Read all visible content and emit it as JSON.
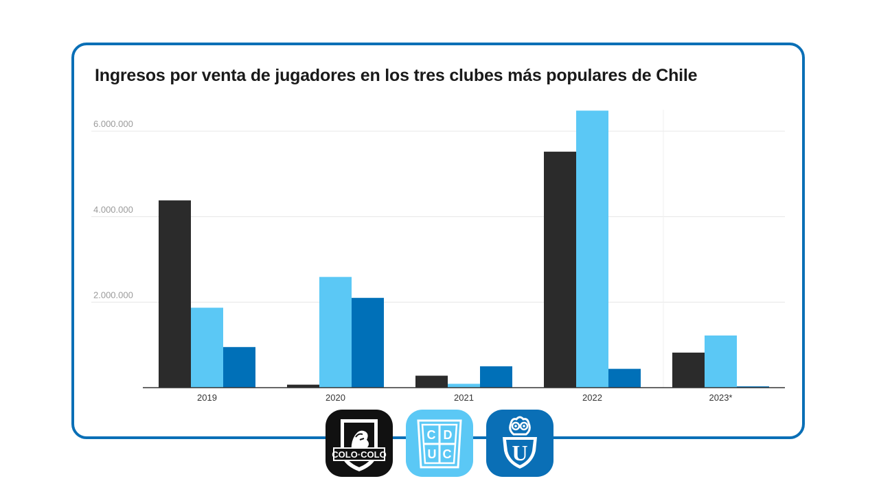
{
  "title": "Ingresos por venta de jugadores en los tres clubes más populares de Chile",
  "colors": {
    "border": "#0a6fb6",
    "colo_colo": "#2b2b2b",
    "universidad_catolica": "#5bc8f5",
    "universidad_de_chile": "#0070b8",
    "grid": "#e6e6e6",
    "tick_text": "#9a9a9a",
    "axis_text": "#333333"
  },
  "chart_data": {
    "type": "bar",
    "title": "Ingresos por venta de jugadores en los tres clubes más populares de Chile",
    "xlabel": "",
    "ylabel": "",
    "categories": [
      "2019",
      "2020",
      "2021",
      "2022",
      "2023*"
    ],
    "y_ticks": [
      "2.000.000",
      "4.000.000",
      "6.000.000"
    ],
    "y_tick_values": [
      2000000,
      4000000,
      6000000
    ],
    "ylim": [
      0,
      6500000
    ],
    "grid": true,
    "legend": "logos-below",
    "series": [
      {
        "values": [
          4380000,
          70000,
          280000,
          5520000,
          820000
        ],
        "color": "#2b2b2b"
      },
      {
        "values": [
          1870000,
          2590000,
          90000,
          6480000,
          1220000
        ],
        "color": "#5bc8f5"
      },
      {
        "values": [
          950000,
          2100000,
          500000,
          440000,
          30000
        ],
        "color": "#0070b8"
      }
    ]
  },
  "logos": {
    "colo_colo": {
      "icon": "colo-colo-crest-icon",
      "text": "COLO·COLO"
    },
    "universidad_catolica": {
      "icon": "cduc-crest-icon",
      "letters": [
        "C",
        "D",
        "U",
        "C"
      ]
    },
    "universidad_de_chile": {
      "icon": "owl-u-crest-icon",
      "letter": "U"
    }
  }
}
